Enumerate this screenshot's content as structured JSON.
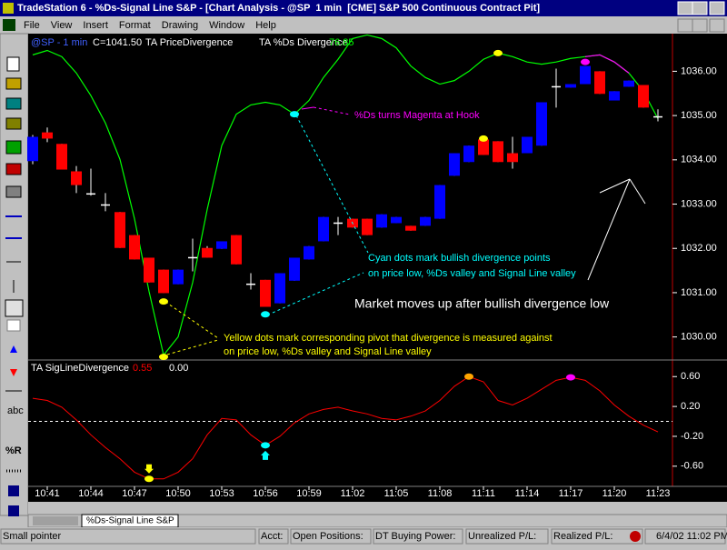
{
  "window": {
    "title": "TradeStation 6 - %Ds-Signal Line S&P - [Chart Analysis - @SP  1 min  [CME] S&P 500 Continuous Contract Pit]",
    "menu": [
      "File",
      "View",
      "Insert",
      "Format",
      "Drawing",
      "Window",
      "Help"
    ]
  },
  "toolbar": {
    "labels": [
      "abc",
      "%R"
    ]
  },
  "chart_data": [
    {
      "type": "candlestick",
      "symbol": "@SP - 1 min",
      "close_label": "C=1041.50",
      "studies": [
        "TA PriceDivergence",
        "TA %Ds Divergence"
      ],
      "study_value": "76.85",
      "categories": [
        null,
        "10:41",
        null,
        null,
        "10:44",
        null,
        null,
        "10:47",
        null,
        null,
        "10:50",
        null,
        null,
        "10:53",
        null,
        null,
        "10:56",
        null,
        null,
        "10:59",
        null,
        null,
        "11:02",
        null,
        null,
        "11:05",
        null,
        null,
        "11:08",
        null,
        null,
        "11:11",
        null,
        null,
        "11:14",
        null,
        null,
        "11:17",
        null,
        null,
        "11:20",
        null,
        null,
        "11:23"
      ],
      "open": [
        1033.97,
        1034.62,
        1034.36,
        1033.74,
        1033.23,
        1032.98,
        1032.82,
        1032.3,
        1031.79,
        1031.52,
        1031.19,
        1031.79,
        1032.01,
        1031.99,
        1032.3,
        1031.19,
        1031.29,
        1030.76,
        1031.27,
        1031.75,
        1032.16,
        1032.57,
        1032.67,
        1032.67,
        1032.47,
        1032.57,
        1032.51,
        1032.51,
        1032.67,
        1033.64,
        1033.95,
        1034.46,
        1034.42,
        1034.15,
        1034.15,
        1034.32,
        1035.65,
        1035.63,
        1035.71,
        1036.0,
        1035.34,
        1035.65,
        1035.69,
        1034.97
      ],
      "high": [
        1034.56,
        1034.73,
        1034.36,
        1033.86,
        1033.8,
        1033.25,
        1032.82,
        1032.3,
        1031.79,
        1031.52,
        1031.52,
        1032.22,
        1032.05,
        1032.16,
        1032.3,
        1031.44,
        1031.29,
        1031.44,
        1031.79,
        1032.05,
        1032.71,
        1032.71,
        1032.67,
        1032.67,
        1032.77,
        1032.71,
        1032.51,
        1032.71,
        1033.43,
        1034.15,
        1034.32,
        1034.46,
        1034.42,
        1034.52,
        1034.52,
        1035.3,
        1036.06,
        1035.71,
        1036.12,
        1036.0,
        1035.55,
        1035.79,
        1035.69,
        1035.14
      ],
      "low": [
        1033.9,
        1034.4,
        1033.78,
        1033.25,
        1033.19,
        1032.84,
        1032.01,
        1031.75,
        1031.23,
        1030.99,
        1031.19,
        1031.48,
        1031.79,
        1031.99,
        1031.64,
        1031.07,
        1030.68,
        1030.76,
        1031.27,
        1031.75,
        1032.16,
        1032.3,
        1032.47,
        1032.3,
        1032.47,
        1032.57,
        1032.4,
        1032.51,
        1032.67,
        1033.64,
        1033.95,
        1034.11,
        1033.95,
        1033.8,
        1034.15,
        1034.32,
        1035.18,
        1035.63,
        1035.71,
        1035.49,
        1035.34,
        1035.65,
        1035.18,
        1034.87
      ],
      "close": [
        1034.52,
        1034.48,
        1033.78,
        1033.43,
        1033.23,
        1032.98,
        1032.01,
        1031.75,
        1031.23,
        1030.99,
        1031.52,
        1031.79,
        1031.79,
        1032.16,
        1031.64,
        1031.19,
        1030.68,
        1031.44,
        1031.79,
        1032.05,
        1032.71,
        1032.57,
        1032.47,
        1032.3,
        1032.77,
        1032.71,
        1032.4,
        1032.71,
        1033.43,
        1034.15,
        1034.32,
        1034.11,
        1033.95,
        1033.95,
        1034.52,
        1035.3,
        1035.65,
        1035.71,
        1036.12,
        1035.49,
        1035.55,
        1035.79,
        1035.18,
        1034.97
      ],
      "up_color": "#0000ff",
      "down_color": "#ff0000",
      "flat_color": "#ffffff",
      "series": [
        {
          "color": "#00ff00",
          "values": [
            1036.37,
            1036.47,
            1036.33,
            1035.96,
            1035.45,
            1034.83,
            1034.01,
            1032.67,
            1031.03,
            1029.59,
            1030.0,
            1031.23,
            1032.88,
            1034.32,
            1035.03,
            1035.24,
            1035.3,
            1035.24,
            1035.03,
            1035.34,
            1035.86,
            1036.27,
            1036.74,
            1036.82,
            1036.74,
            1036.53,
            1036.12,
            1035.86,
            1035.71,
            1035.79,
            1036.0,
            1036.27,
            1036.41,
            1036.33,
            1036.21,
            1036.16,
            1036.21,
            1036.29,
            1036.33,
            1036.37,
            1036.21,
            1035.96,
            1035.55,
            1034.93
          ]
        },
        {
          "color": "#ff00ff",
          "values": [
            null,
            null,
            null,
            null,
            null,
            null,
            null,
            null,
            null,
            null,
            null,
            null,
            null,
            null,
            null,
            null,
            null,
            null,
            null,
            null,
            null,
            null,
            null,
            null,
            null,
            null,
            null,
            null,
            null,
            null,
            null,
            null,
            null,
            null,
            null,
            null,
            null,
            null,
            1036.33,
            1036.37,
            1036.21,
            1035.96,
            null,
            null
          ]
        }
      ],
      "markers": [
        {
          "index": 9,
          "value": 1030.8,
          "color": "#ffff00"
        },
        {
          "index": 9,
          "value": 1029.55,
          "color": "#ffff00"
        },
        {
          "index": 16,
          "value": 1030.51,
          "color": "#00ffff"
        },
        {
          "index": 18,
          "value": 1035.03,
          "color": "#00ffff"
        },
        {
          "index": 31,
          "value": 1034.48,
          "color": "#ffff00"
        },
        {
          "index": 32,
          "value": 1036.41,
          "color": "#ffff00"
        },
        {
          "index": 38,
          "value": 1036.21,
          "color": "#ff00ff"
        }
      ],
      "ylim": [
        1029.5,
        1036.85
      ],
      "yticks": [
        {
          "value": 1030,
          "label": "1030.00"
        },
        {
          "value": 1031,
          "label": "1031.00"
        },
        {
          "value": 1032,
          "label": "1032.00"
        },
        {
          "value": 1033,
          "label": "1033.00"
        },
        {
          "value": 1034,
          "label": "1034.00"
        },
        {
          "value": 1035,
          "label": "1035.00"
        },
        {
          "value": 1036,
          "label": "1036.00"
        }
      ]
    },
    {
      "type": "line",
      "study": "TA SigLineDivergence",
      "study_value": "0.55",
      "study_value2": "0.00",
      "color": "#ff0000",
      "values": [
        0.31,
        0.28,
        0.19,
        0.02,
        -0.18,
        -0.35,
        -0.5,
        -0.68,
        -0.77,
        -0.77,
        -0.68,
        -0.5,
        -0.18,
        0.04,
        0.02,
        -0.18,
        -0.32,
        -0.2,
        -0.02,
        0.1,
        0.16,
        0.19,
        0.14,
        0.1,
        0.04,
        0.02,
        0.07,
        0.14,
        0.28,
        0.47,
        0.6,
        0.53,
        0.28,
        0.22,
        0.31,
        0.43,
        0.55,
        0.59,
        0.55,
        0.41,
        0.22,
        0.07,
        -0.05,
        -0.14
      ],
      "reference_line": 0,
      "markers": [
        {
          "index": 8,
          "value": -0.77,
          "color": "#ffff00",
          "arrow": "down"
        },
        {
          "index": 16,
          "value": -0.32,
          "color": "#00ffff",
          "arrow": "up"
        },
        {
          "index": 30,
          "value": 0.6,
          "color": "#ffa500"
        },
        {
          "index": 37,
          "value": 0.59,
          "color": "#ff00ff"
        }
      ],
      "ylim": [
        -0.87,
        0.81
      ],
      "yticks": [
        {
          "value": 0.6,
          "label": "0.60"
        },
        {
          "value": 0.2,
          "label": "0.20"
        },
        {
          "value": -0.2,
          "label": "-0.20"
        },
        {
          "value": -0.6,
          "label": "-0.60"
        }
      ]
    }
  ],
  "annotations": {
    "hook": "%Ds turns Magenta at Hook",
    "cyan": [
      "Cyan dots mark bullish divergence points",
      "on price low, %Ds valley and Signal Line valley"
    ],
    "market": "Market moves up after bullish divergence low",
    "yellow": [
      "Yellow dots mark corresponding pivot that divergence is measured against",
      "on price low, %Ds valley and Signal Line valley"
    ]
  },
  "tab": "%Ds-Signal Line S&P",
  "status": [
    "Small pointer",
    "Acct:",
    "Open Positions:",
    "DT Buying Power:",
    "Unrealized P/L:",
    "Realized P/L:",
    "6/4/02 11:02 PM"
  ]
}
